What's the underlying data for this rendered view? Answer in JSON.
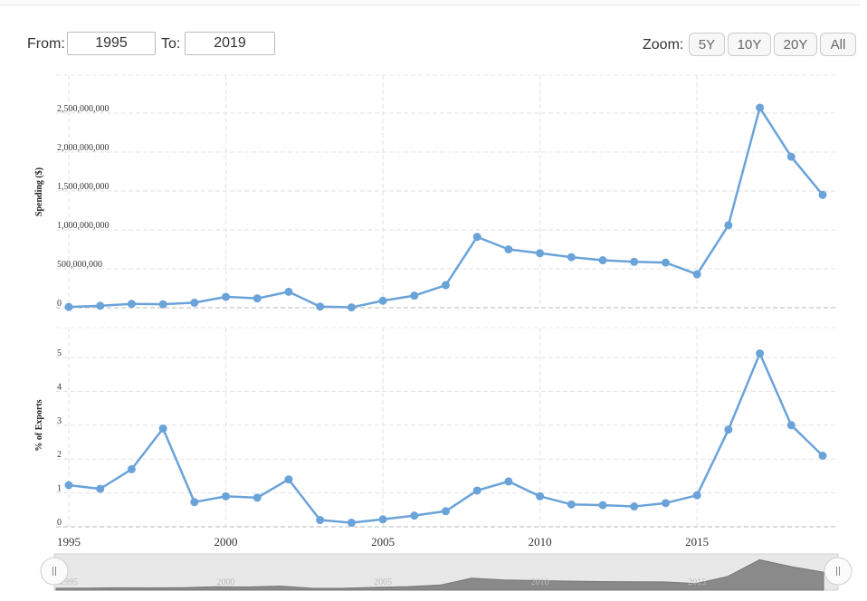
{
  "range_selector": {
    "from_label": "From:",
    "from_value": "1995",
    "to_label": "To:",
    "to_value": "2019",
    "zoom_label": "Zoom:",
    "zoom_buttons": [
      "5Y",
      "10Y",
      "20Y",
      "All"
    ]
  },
  "colors": {
    "series": "#6aa3d9",
    "navigator_fill": "#8a8a8a",
    "navigator_bg": "#e8e8e8"
  },
  "chart_data": [
    {
      "type": "line",
      "ylabel": "Spending ($)",
      "ylim": [
        0,
        2500000000
      ],
      "yticks": [
        "0",
        "500,000,000",
        "1,000,000,000",
        "1,500,000,000",
        "2,000,000,000",
        "2,500,000,000"
      ],
      "grid": true,
      "x": [
        1995,
        1996,
        1997,
        1998,
        1999,
        2000,
        2001,
        2002,
        2003,
        2004,
        2005,
        2006,
        2007,
        2008,
        2009,
        2010,
        2011,
        2012,
        2013,
        2014,
        2015,
        2016,
        2017,
        2018,
        2019
      ],
      "series": [
        {
          "values": [
            10000000,
            25000000,
            50000000,
            45000000,
            65000000,
            140000000,
            120000000,
            205000000,
            15000000,
            5000000,
            90000000,
            155000000,
            290000000,
            910000000,
            750000000,
            700000000,
            650000000,
            610000000,
            590000000,
            580000000,
            430000000,
            1060000000,
            2570000000,
            1940000000,
            1450000000
          ]
        }
      ]
    },
    {
      "type": "line",
      "ylabel": "% of Exports",
      "ylim": [
        0,
        5
      ],
      "yticks": [
        "0",
        "1",
        "2",
        "3",
        "4",
        "5"
      ],
      "grid": true,
      "x": [
        1995,
        1996,
        1997,
        1998,
        1999,
        2000,
        2001,
        2002,
        2003,
        2004,
        2005,
        2006,
        2007,
        2008,
        2009,
        2010,
        2011,
        2012,
        2013,
        2014,
        2015,
        2016,
        2017,
        2018,
        2019
      ],
      "xticks": [
        "1995",
        "2000",
        "2005",
        "2010",
        "2015"
      ],
      "series": [
        {
          "values": [
            1.23,
            1.12,
            1.7,
            2.9,
            0.73,
            0.9,
            0.86,
            1.4,
            0.2,
            0.12,
            0.22,
            0.33,
            0.46,
            1.07,
            1.34,
            0.9,
            0.66,
            0.64,
            0.6,
            0.7,
            0.93,
            2.87,
            5.12,
            3.0,
            2.1
          ]
        }
      ]
    }
  ],
  "navigator": {
    "xticks": [
      "1995",
      "2000",
      "2005",
      "2010",
      "2015"
    ]
  }
}
